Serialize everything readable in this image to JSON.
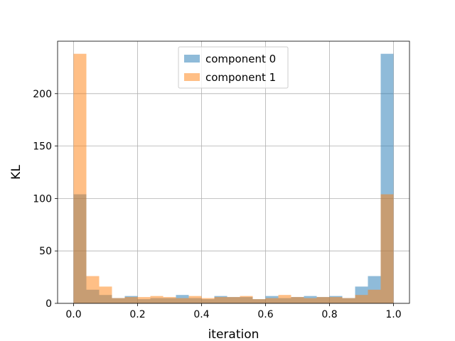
{
  "chart_data": {
    "type": "bar",
    "title": "",
    "xlabel": "iteration",
    "ylabel": "KL",
    "xlim": [
      -0.05,
      1.05
    ],
    "ylim": [
      0,
      250
    ],
    "xticks": [
      0.0,
      0.2,
      0.4,
      0.6,
      0.8,
      1.0
    ],
    "xtick_labels": [
      "0.0",
      "0.2",
      "0.4",
      "0.6",
      "0.8",
      "1.0"
    ],
    "yticks": [
      0,
      50,
      100,
      150,
      200
    ],
    "ytick_labels": [
      "0",
      "50",
      "100",
      "150",
      "200"
    ],
    "grid": true,
    "legend_position": "top-center",
    "bin_edges": [
      0.0,
      0.04,
      0.08,
      0.12,
      0.16,
      0.2,
      0.24,
      0.28,
      0.32,
      0.36,
      0.4,
      0.44,
      0.48,
      0.52,
      0.56,
      0.6,
      0.64,
      0.68,
      0.72,
      0.76,
      0.8,
      0.84,
      0.88,
      0.92,
      0.96,
      1.0
    ],
    "series": [
      {
        "name": "component 0",
        "color": "#1f77b4",
        "values": [
          104,
          13,
          8,
          5,
          7,
          4,
          5,
          5,
          8,
          5,
          4,
          7,
          6,
          6,
          4,
          7,
          5,
          6,
          7,
          6,
          7,
          5,
          16,
          26,
          238
        ]
      },
      {
        "name": "component 1",
        "color": "#ff7f0e",
        "values": [
          238,
          26,
          16,
          5,
          6,
          6,
          7,
          6,
          5,
          7,
          5,
          6,
          6,
          7,
          4,
          5,
          8,
          6,
          5,
          6,
          6,
          5,
          8,
          13,
          104
        ]
      }
    ]
  }
}
